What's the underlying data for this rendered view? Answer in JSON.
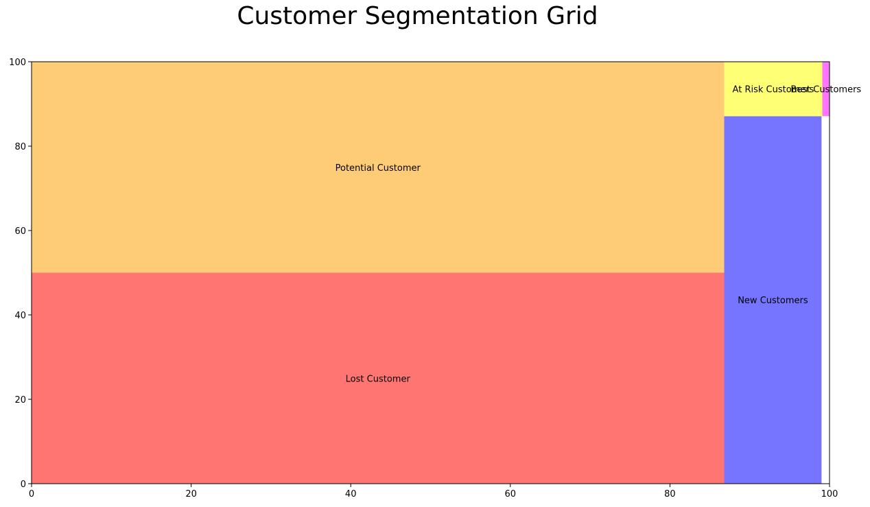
{
  "chart_data": {
    "type": "treemap",
    "title": "Customer Segmentation Grid",
    "xlim": [
      0,
      100
    ],
    "ylim": [
      0,
      100
    ],
    "xticks": [
      "0",
      "20",
      "40",
      "60",
      "80",
      "100"
    ],
    "yticks": [
      "0",
      "20",
      "40",
      "60",
      "80",
      "100"
    ],
    "grid": false,
    "segments": [
      {
        "label": "Lost Customer",
        "x": 0,
        "y": 0,
        "dx": 86.8,
        "dy": 50.0,
        "color": "#ff7572"
      },
      {
        "label": "Potential Customer",
        "x": 0,
        "y": 50.0,
        "dx": 86.8,
        "dy": 50.0,
        "color": "#fecc76"
      },
      {
        "label": "New Customers",
        "x": 86.8,
        "y": 0,
        "dx": 12.2,
        "dy": 87.1,
        "color": "#7575ff"
      },
      {
        "label": "At Risk Customers",
        "x": 86.8,
        "y": 87.1,
        "dx": 12.3,
        "dy": 12.9,
        "color": "#ffff75"
      },
      {
        "label": "Best Customers",
        "x": 99.1,
        "y": 87.1,
        "dx": 0.9,
        "dy": 12.9,
        "color": "#ff75ff"
      }
    ]
  }
}
